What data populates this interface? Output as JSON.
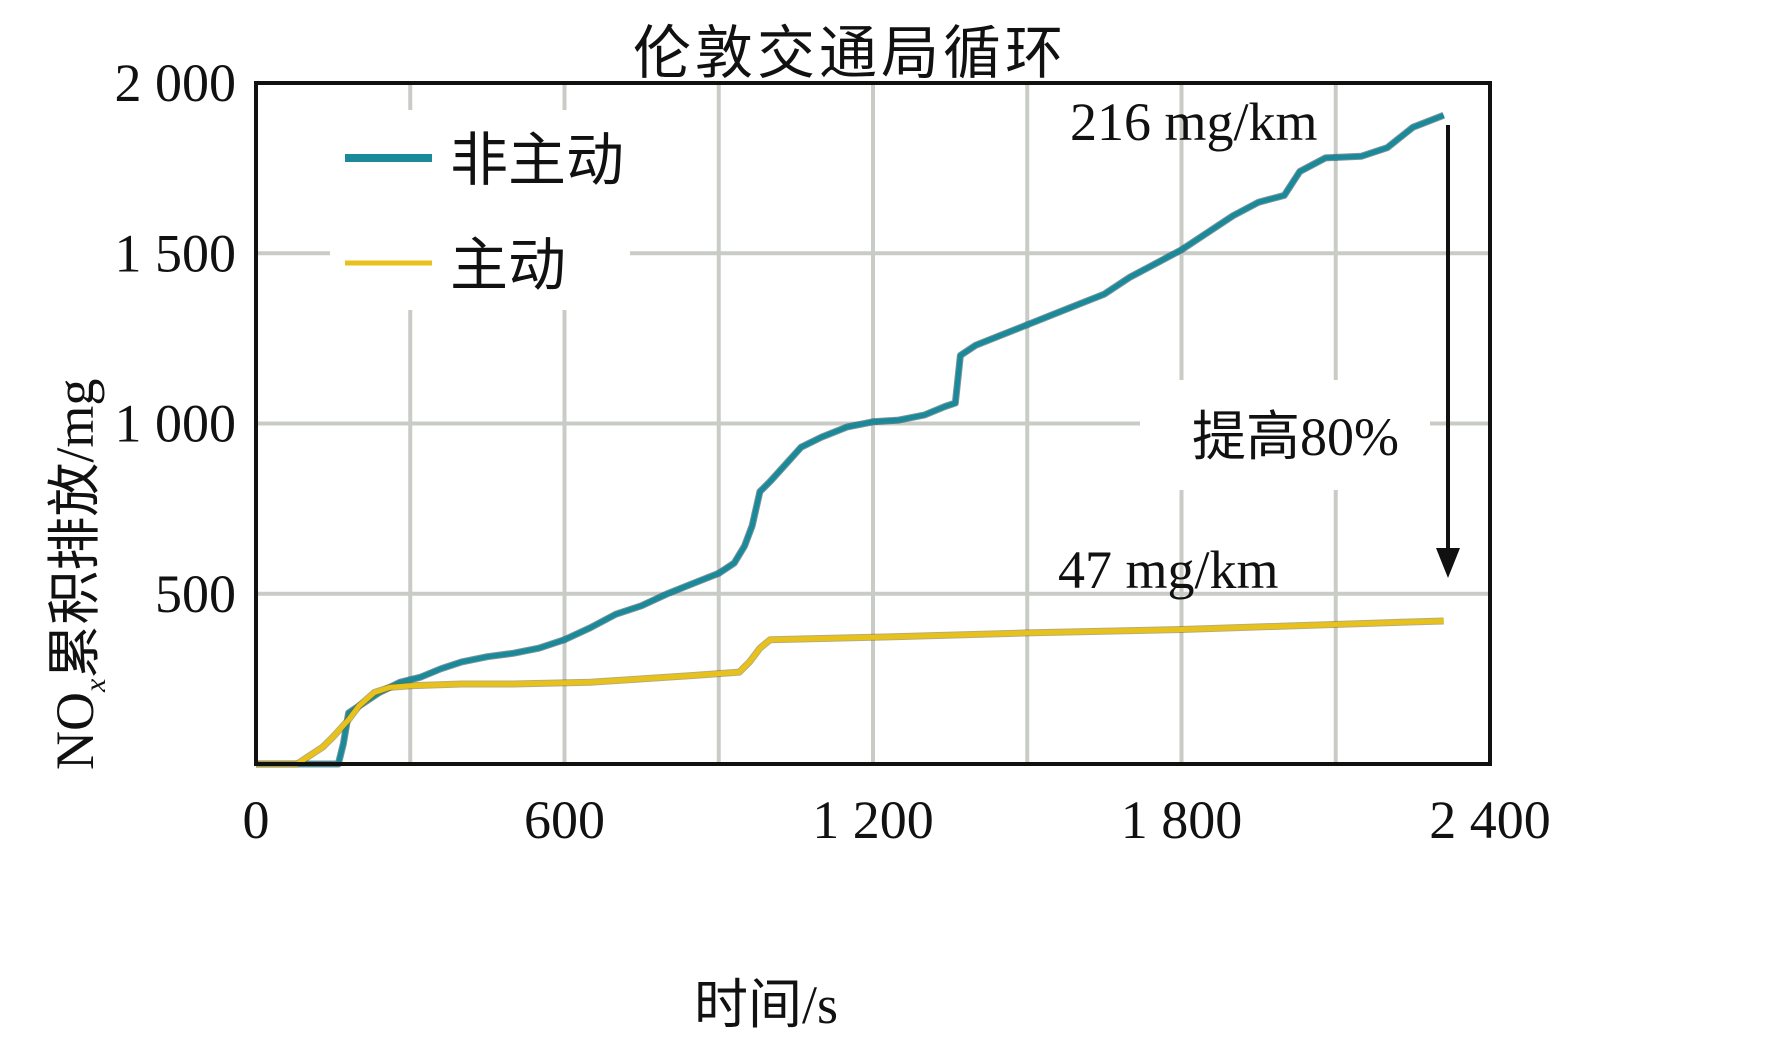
{
  "chart_data": {
    "type": "line",
    "title": "伦敦交通局循环",
    "xlabel": "时间/s",
    "ylabel": "NOx累积排放/mg",
    "xlim": [
      0,
      2400
    ],
    "ylim": [
      0,
      2000
    ],
    "xticks": [
      0,
      600,
      1200,
      1800,
      2400
    ],
    "xtick_labels": [
      "0",
      "600",
      "1 200",
      "1 800",
      "2 400"
    ],
    "yticks": [
      500,
      1000,
      1500,
      2000
    ],
    "ytick_labels": [
      "500",
      "1 000",
      "1 500",
      "2 000"
    ],
    "grid": true,
    "legend_position": "upper left",
    "series": [
      {
        "name": "非主动",
        "color": "#1a8a9a",
        "points": [
          [
            0,
            0
          ],
          [
            150,
            0
          ],
          [
            160,
            0
          ],
          [
            170,
            60
          ],
          [
            180,
            150
          ],
          [
            210,
            180
          ],
          [
            240,
            210
          ],
          [
            280,
            240
          ],
          [
            320,
            255
          ],
          [
            360,
            280
          ],
          [
            400,
            300
          ],
          [
            450,
            315
          ],
          [
            500,
            325
          ],
          [
            550,
            340
          ],
          [
            600,
            365
          ],
          [
            650,
            400
          ],
          [
            700,
            440
          ],
          [
            750,
            465
          ],
          [
            800,
            500
          ],
          [
            850,
            530
          ],
          [
            900,
            560
          ],
          [
            930,
            590
          ],
          [
            950,
            640
          ],
          [
            965,
            700
          ],
          [
            980,
            800
          ],
          [
            1000,
            830
          ],
          [
            1030,
            880
          ],
          [
            1060,
            930
          ],
          [
            1100,
            960
          ],
          [
            1150,
            990
          ],
          [
            1200,
            1005
          ],
          [
            1250,
            1010
          ],
          [
            1300,
            1025
          ],
          [
            1340,
            1050
          ],
          [
            1360,
            1060
          ],
          [
            1370,
            1200
          ],
          [
            1400,
            1230
          ],
          [
            1450,
            1260
          ],
          [
            1500,
            1290
          ],
          [
            1550,
            1320
          ],
          [
            1600,
            1350
          ],
          [
            1650,
            1380
          ],
          [
            1700,
            1430
          ],
          [
            1750,
            1470
          ],
          [
            1800,
            1510
          ],
          [
            1850,
            1560
          ],
          [
            1900,
            1610
          ],
          [
            1950,
            1650
          ],
          [
            2000,
            1670
          ],
          [
            2030,
            1740
          ],
          [
            2080,
            1780
          ],
          [
            2150,
            1785
          ],
          [
            2200,
            1810
          ],
          [
            2250,
            1870
          ],
          [
            2310,
            1905
          ]
        ]
      },
      {
        "name": "主动",
        "color": "#e8c21a",
        "points": [
          [
            0,
            0
          ],
          [
            80,
            0
          ],
          [
            100,
            20
          ],
          [
            130,
            50
          ],
          [
            150,
            80
          ],
          [
            180,
            130
          ],
          [
            200,
            170
          ],
          [
            230,
            210
          ],
          [
            260,
            225
          ],
          [
            300,
            230
          ],
          [
            400,
            235
          ],
          [
            500,
            235
          ],
          [
            650,
            240
          ],
          [
            750,
            250
          ],
          [
            850,
            260
          ],
          [
            940,
            270
          ],
          [
            960,
            300
          ],
          [
            980,
            340
          ],
          [
            1000,
            365
          ],
          [
            1200,
            372
          ],
          [
            1500,
            385
          ],
          [
            1800,
            395
          ],
          [
            2000,
            405
          ],
          [
            2200,
            415
          ],
          [
            2310,
            420
          ]
        ]
      }
    ],
    "annotations": [
      {
        "text": "216 mg/km",
        "x": 1890,
        "y": 1880
      },
      {
        "text": "47 mg/km",
        "x": 1780,
        "y": 560
      },
      {
        "text": "提高80%",
        "x": 2120,
        "y": 1000,
        "arrow": {
          "from": [
            2310,
            1880
          ],
          "to": [
            2310,
            560
          ]
        }
      }
    ]
  },
  "title": "伦敦交通局循环",
  "axes": {
    "x_label": "时间/s",
    "y_label_main": "NO",
    "y_label_sub": "x",
    "y_label_rest": "累积排放/mg"
  },
  "legend": [
    {
      "label": "非主动",
      "color": "#1a8a9a"
    },
    {
      "label": "主动",
      "color": "#e8c21a"
    }
  ],
  "annotations": {
    "nonactive_rate": "216 mg/km",
    "active_rate": "47 mg/km",
    "improvement": "提高80%"
  }
}
